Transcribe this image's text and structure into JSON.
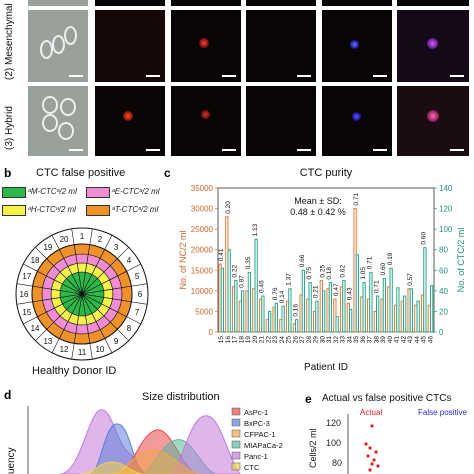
{
  "panels": {
    "b": {
      "letter": "b",
      "title": "CTC false positive",
      "xlabel": "Healthy Donor ID",
      "legend": [
        {
          "text": "ᵃM-CTCᵃ/2 ml",
          "color": "#2db84a"
        },
        {
          "text": "ᵃE-CTCᵃ/2 ml",
          "color": "#f08cd2"
        },
        {
          "text": "ᵃH-CTCᵃ/2 ml",
          "color": "#f2f24a"
        },
        {
          "text": "ᵃT-CTCᵃ/2 ml",
          "color": "#f0922a"
        }
      ],
      "donor_ids": [
        "1",
        "2",
        "3",
        "4",
        "5",
        "6",
        "7",
        "8",
        "9",
        "10",
        "11",
        "12",
        "13",
        "14",
        "15",
        "16",
        "17",
        "18",
        "19",
        "20"
      ]
    },
    "c": {
      "letter": "c",
      "title": "CTC purity"
    },
    "d": {
      "letter": "d",
      "title": "Size distribution",
      "ylabel": "uency",
      "legend": [
        {
          "text": "AsPc-1",
          "color": "#e8474a"
        },
        {
          "text": "BxPC-3",
          "color": "#5d7fd6"
        },
        {
          "text": "CFPAC-1",
          "color": "#f0a64a"
        },
        {
          "text": "MIAPaCa-2",
          "color": "#58b89a"
        },
        {
          "text": "Panc-1",
          "color": "#c27adc"
        },
        {
          "text": "CTC",
          "color": "#f2d24a"
        }
      ]
    },
    "e": {
      "letter": "e",
      "title": "Actual vs false positive CTCs",
      "series_labels": [
        {
          "text": "Actual",
          "color": "#e02020"
        },
        {
          "text": "False positive",
          "color": "#2030d0"
        }
      ],
      "ylabel": "Cells/2 ml",
      "yticks": [
        "120",
        "100",
        "80"
      ]
    },
    "a": {
      "row_labels": [
        "(2) Mesenchymal",
        "(3) Hybrid"
      ]
    }
  },
  "chart_data": [
    {
      "type": "bar",
      "title": "CTC purity",
      "xlabel": "Patient ID",
      "ylabel": "No. of NC/2 ml",
      "ylabel_right": "No. of CTC/2 ml",
      "annotation": "Mean ± SD:\n0.48 ± 0.42 %",
      "annotation_lines": [
        "Mean ± SD:",
        "0.48 ± 0.42 %"
      ],
      "ylim": [
        0,
        35000
      ],
      "ylim_right": [
        0,
        140
      ],
      "yticks": [
        "0",
        "5000",
        "10000",
        "15000",
        "20000",
        "25000",
        "30000",
        "35000"
      ],
      "yticks_right": [
        "0",
        "20",
        "40",
        "60",
        "80",
        "100",
        "120",
        "140"
      ],
      "categories": [
        "15",
        "16",
        "17",
        "18",
        "19",
        "20",
        "21",
        "22",
        "23",
        "24",
        "25",
        "26",
        "27",
        "28",
        "29",
        "30",
        "31",
        "32",
        "33",
        "34",
        "35",
        "36",
        "37",
        "38",
        "39",
        "40",
        "41",
        "42",
        "43",
        "44",
        "45",
        "46"
      ],
      "series": [
        {
          "name": "No. of NC/2 ml",
          "axis": "left",
          "color": "#e07a3a",
          "values": [
            16500,
            28000,
            11000,
            7500,
            10000,
            10500,
            8000,
            3000,
            6000,
            3000,
            7500,
            2000,
            9000,
            8000,
            5000,
            12500,
            10500,
            8000,
            11000,
            7000,
            30000,
            8500,
            8000,
            5000,
            8000,
            11000,
            6500,
            7500,
            10500,
            6500,
            9000,
            6500
          ]
        },
        {
          "name": "No. of CTC/2 ml",
          "axis": "right",
          "color": "#2aa58a",
          "values": [
            62,
            80,
            50,
            40,
            58,
            90,
            35,
            20,
            28,
            25,
            42,
            12,
            60,
            48,
            30,
            40,
            48,
            15,
            50,
            22,
            75,
            48,
            58,
            35,
            52,
            62,
            43,
            35,
            42,
            30,
            82,
            45
          ]
        }
      ],
      "bar_labels": [
        "0.41",
        "0.20",
        "0.22",
        "0.87",
        "0.35",
        "1.13",
        "0.46",
        "",
        "0.76",
        "0.14",
        "1.37",
        "0.16",
        "0.66",
        "0.75",
        "0.21",
        "0.25",
        "0.18",
        "0.47",
        "0.62",
        "0.43",
        "0.71",
        "1.05",
        "0.71",
        "0.71",
        "0.60",
        "0.19",
        "",
        "",
        "0.57",
        "",
        "0.60",
        ""
      ]
    },
    {
      "type": "area",
      "title": "Size distribution",
      "series": [
        {
          "name": "AsPc-1"
        },
        {
          "name": "BxPC-3"
        },
        {
          "name": "CFPAC-1"
        },
        {
          "name": "MIAPaCa-2"
        },
        {
          "name": "Panc-1"
        },
        {
          "name": "CTC"
        }
      ]
    }
  ]
}
